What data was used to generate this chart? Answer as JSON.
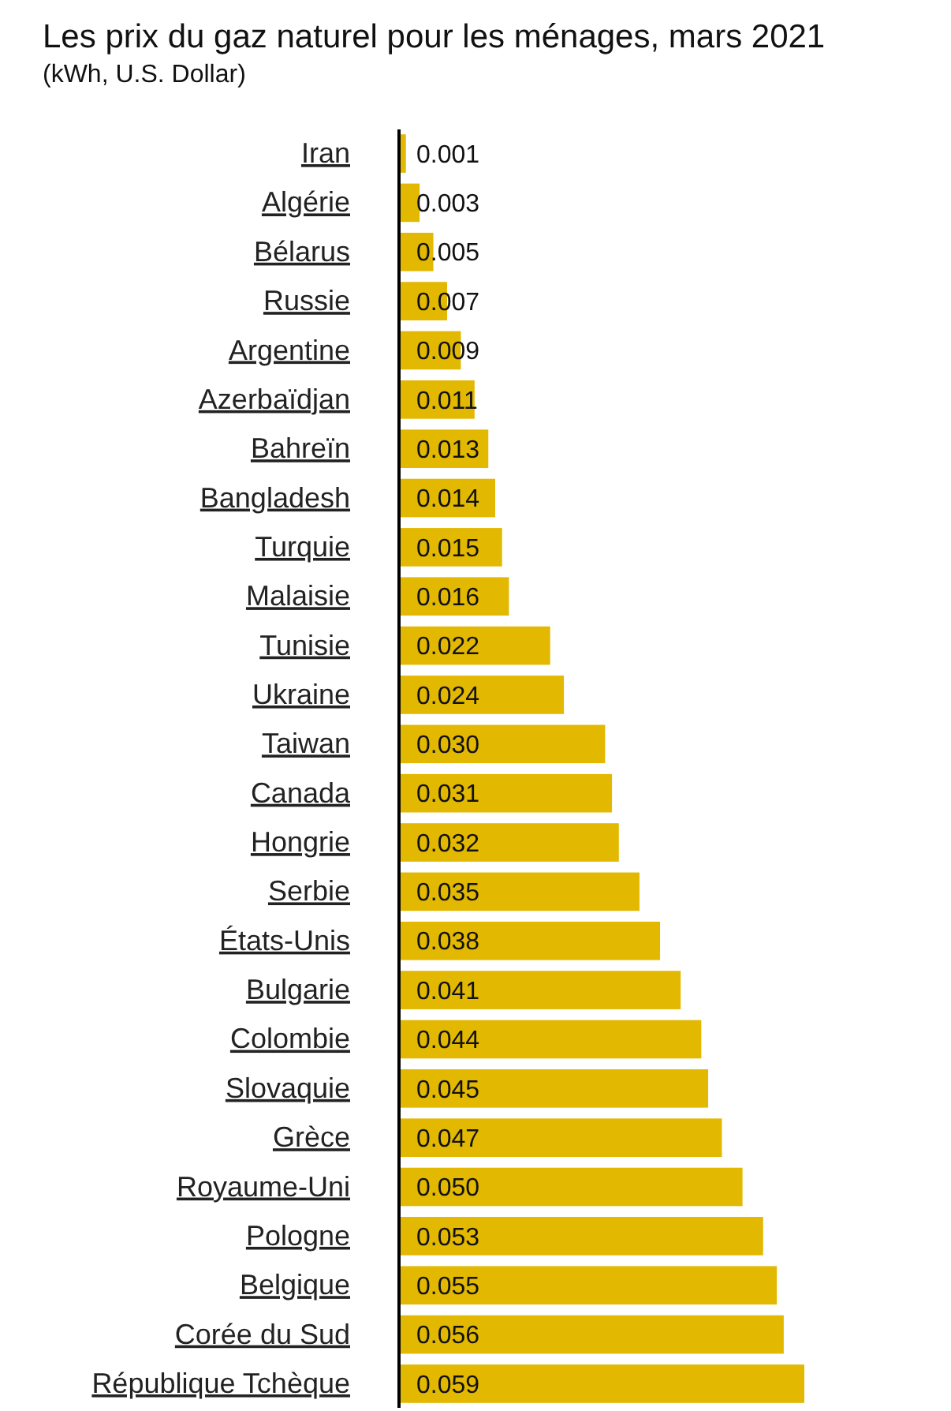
{
  "chart_data": {
    "type": "bar",
    "orientation": "horizontal",
    "title": "Les prix du gaz naturel pour les ménages, mars 2021",
    "subtitle": "(kWh, U.S. Dollar)",
    "categories": [
      "Iran",
      "Algérie",
      "Bélarus",
      "Russie",
      "Argentine",
      "Azerbaïdjan",
      "Bahreïn",
      "Bangladesh",
      "Turquie",
      "Malaisie",
      "Tunisie",
      "Ukraine",
      "Taiwan",
      "Canada",
      "Hongrie",
      "Serbie",
      "États-Unis",
      "Bulgarie",
      "Colombie",
      "Slovaquie",
      "Grèce",
      "Royaume-Uni",
      "Pologne",
      "Belgique",
      "Corée du Sud",
      "République Tchèque"
    ],
    "values": [
      0.001,
      0.003,
      0.005,
      0.007,
      0.009,
      0.011,
      0.013,
      0.014,
      0.015,
      0.016,
      0.022,
      0.024,
      0.03,
      0.031,
      0.032,
      0.035,
      0.038,
      0.041,
      0.044,
      0.045,
      0.047,
      0.05,
      0.053,
      0.055,
      0.056,
      0.059
    ],
    "value_labels": [
      "0.001",
      "0.003",
      "0.005",
      "0.007",
      "0.009",
      "0.011",
      "0.013",
      "0.014",
      "0.015",
      "0.016",
      "0.022",
      "0.024",
      "0.030",
      "0.031",
      "0.032",
      "0.035",
      "0.038",
      "0.041",
      "0.044",
      "0.045",
      "0.047",
      "0.050",
      "0.053",
      "0.055",
      "0.056",
      "0.059"
    ],
    "color": "#e2b800"
  }
}
